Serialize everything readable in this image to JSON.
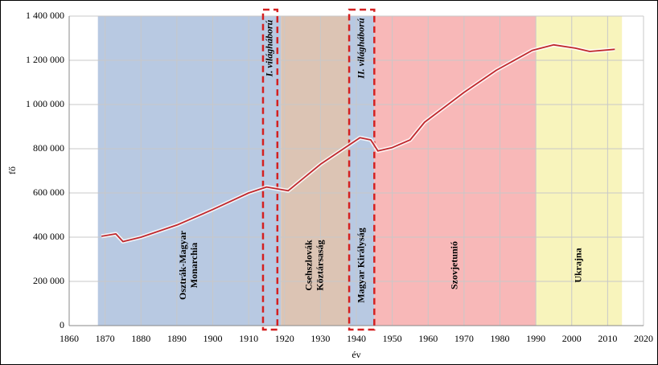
{
  "chart_data": {
    "type": "line",
    "x_label": "év",
    "y_label": "fő",
    "x": [
      1869,
      1873,
      1875,
      1880,
      1890,
      1900,
      1910,
      1915,
      1921,
      1930,
      1941,
      1944,
      1946,
      1950,
      1955,
      1959,
      1970,
      1979,
      1989,
      1995,
      2001,
      2005,
      2012
    ],
    "series": [
      {
        "color": "#c0282d",
        "values": [
          404000,
          415000,
          380000,
          400000,
          455000,
          525000,
          600000,
          627000,
          610000,
          730000,
          850000,
          840000,
          790000,
          805000,
          840000,
          920000,
          1055000,
          1155000,
          1245000,
          1270000,
          1255000,
          1240000,
          1250000
        ]
      }
    ],
    "xlim": [
      1860,
      2020
    ],
    "xticks": [
      1860,
      1870,
      1880,
      1890,
      1900,
      1910,
      1920,
      1930,
      1940,
      1950,
      1960,
      1970,
      1980,
      1990,
      2000,
      2010,
      2020
    ],
    "ylim": [
      0,
      1400000
    ],
    "yticks": [
      0,
      {
        "value": 200000,
        "label": "200 000"
      },
      {
        "value": 400000,
        "label": "400 000"
      },
      {
        "value": 600000,
        "label": "600 000"
      },
      {
        "value": 800000,
        "label": "800 000"
      },
      {
        "value": 1000000,
        "label": "1 000 000"
      },
      {
        "value": 1200000,
        "label": "1 200 000"
      },
      {
        "value": 1400000,
        "label": "1 400 000"
      }
    ],
    "grid": true,
    "bands": [
      {
        "label": [
          "Osztrák-Magyar",
          "Monarchia"
        ],
        "start": 1868,
        "end": 1919,
        "color": "#b8c9e2"
      },
      {
        "label": [
          "Csehszlovák",
          "Köztársaság"
        ],
        "start": 1919,
        "end": 1938,
        "color": "#dcc4b4"
      },
      {
        "label": [
          "Magyar Királyság"
        ],
        "start": 1938,
        "end": 1945,
        "color": "#b8c9e2"
      },
      {
        "label": [
          "Szovjetunió"
        ],
        "start": 1945,
        "end": 1990,
        "color": "#f8b8b8"
      },
      {
        "label": [
          "Ukrajna"
        ],
        "start": 1990,
        "end": 2014,
        "color": "#f8f4bc"
      }
    ],
    "wars": [
      {
        "label": "I. világháború",
        "start": 1914,
        "end": 1918
      },
      {
        "label": "II. világháború",
        "start": 1938,
        "end": 1945
      }
    ]
  }
}
